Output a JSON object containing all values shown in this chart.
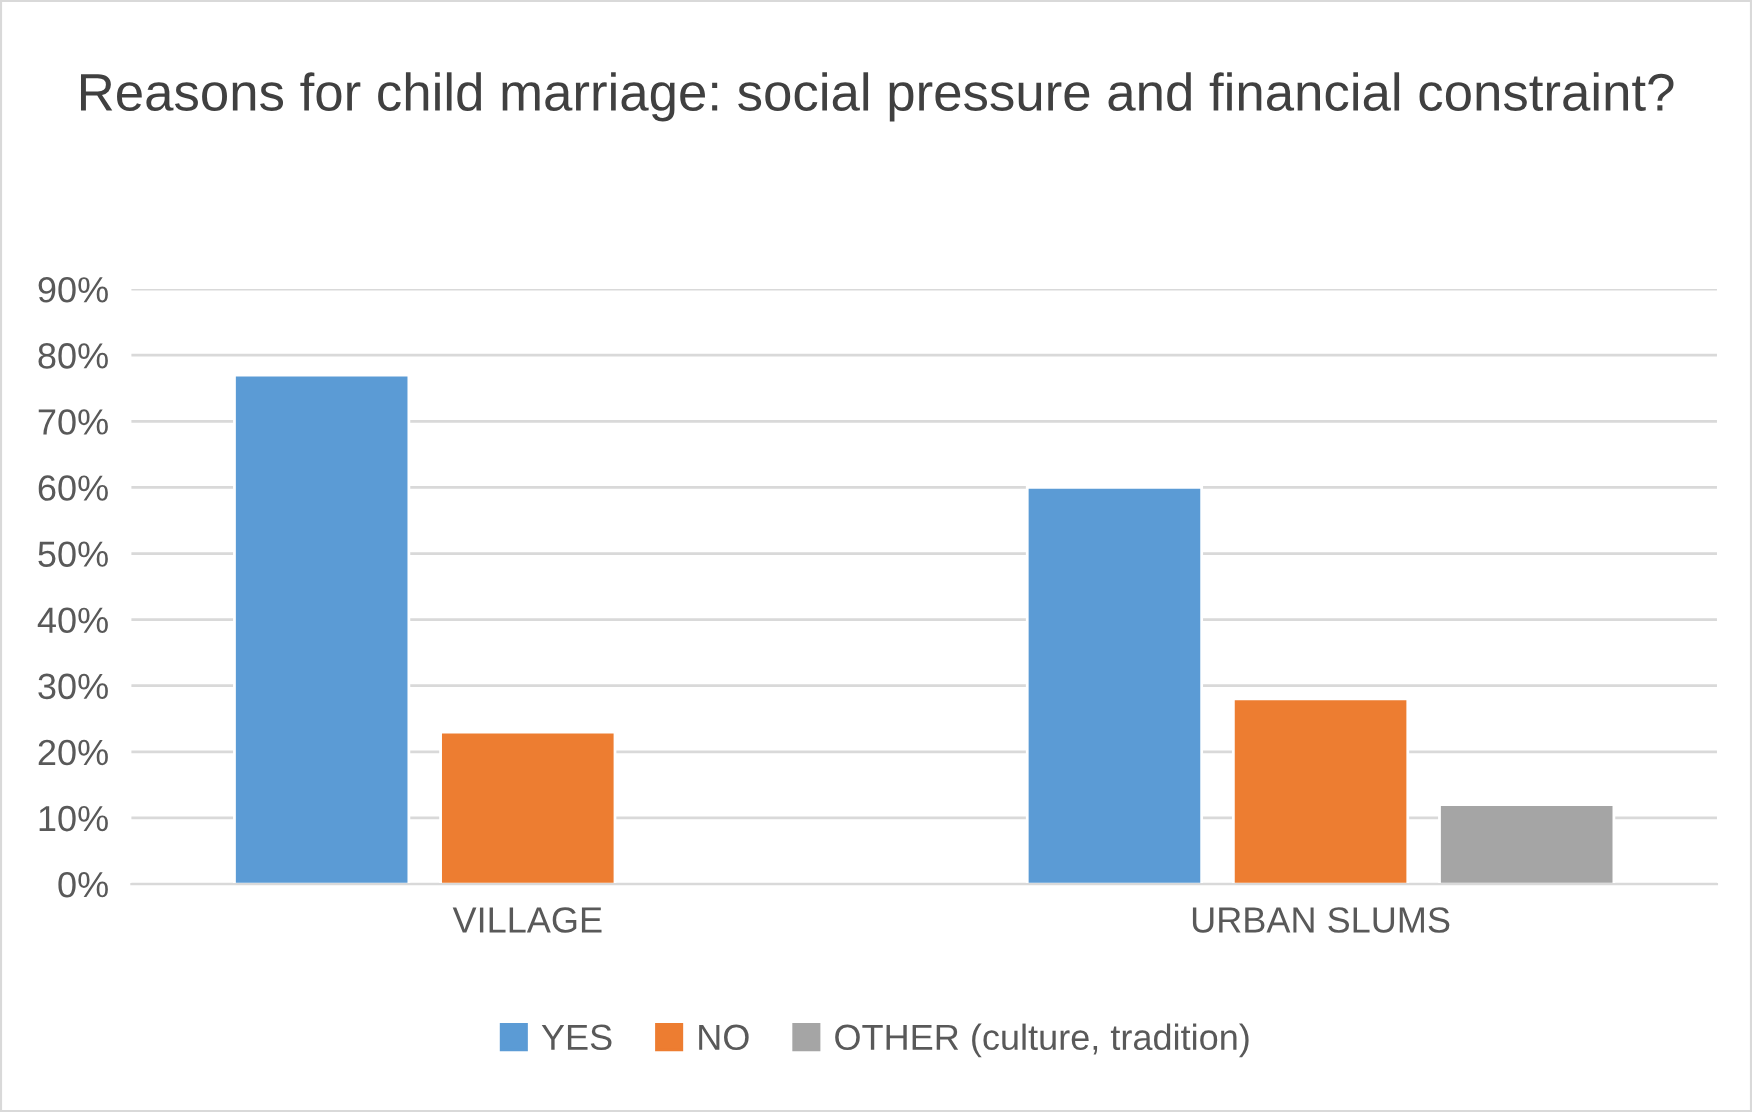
{
  "chart_data": {
    "type": "bar",
    "title": "Reasons for child marriage: social pressure and financial constraint?",
    "categories": [
      "VILLAGE",
      "URBAN SLUMS"
    ],
    "series": [
      {
        "name": "YES",
        "color": "#5b9bd5",
        "values": [
          77,
          60
        ]
      },
      {
        "name": "NO",
        "color": "#ed7d31",
        "values": [
          23,
          28
        ]
      },
      {
        "name": "OTHER (culture, tradition)",
        "color": "#a5a5a5",
        "values": [
          null,
          12
        ]
      }
    ],
    "ylim": [
      0,
      90
    ],
    "yticks": [
      {
        "value": 0,
        "label": "0%"
      },
      {
        "value": 10,
        "label": "10%"
      },
      {
        "value": 20,
        "label": "20%"
      },
      {
        "value": 30,
        "label": "30%"
      },
      {
        "value": 40,
        "label": "40%"
      },
      {
        "value": 50,
        "label": "50%"
      },
      {
        "value": 60,
        "label": "60%"
      },
      {
        "value": 70,
        "label": "70%"
      },
      {
        "value": 80,
        "label": "80%"
      },
      {
        "value": 90,
        "label": "90%"
      }
    ],
    "grid": "y",
    "legend": "bottom"
  }
}
